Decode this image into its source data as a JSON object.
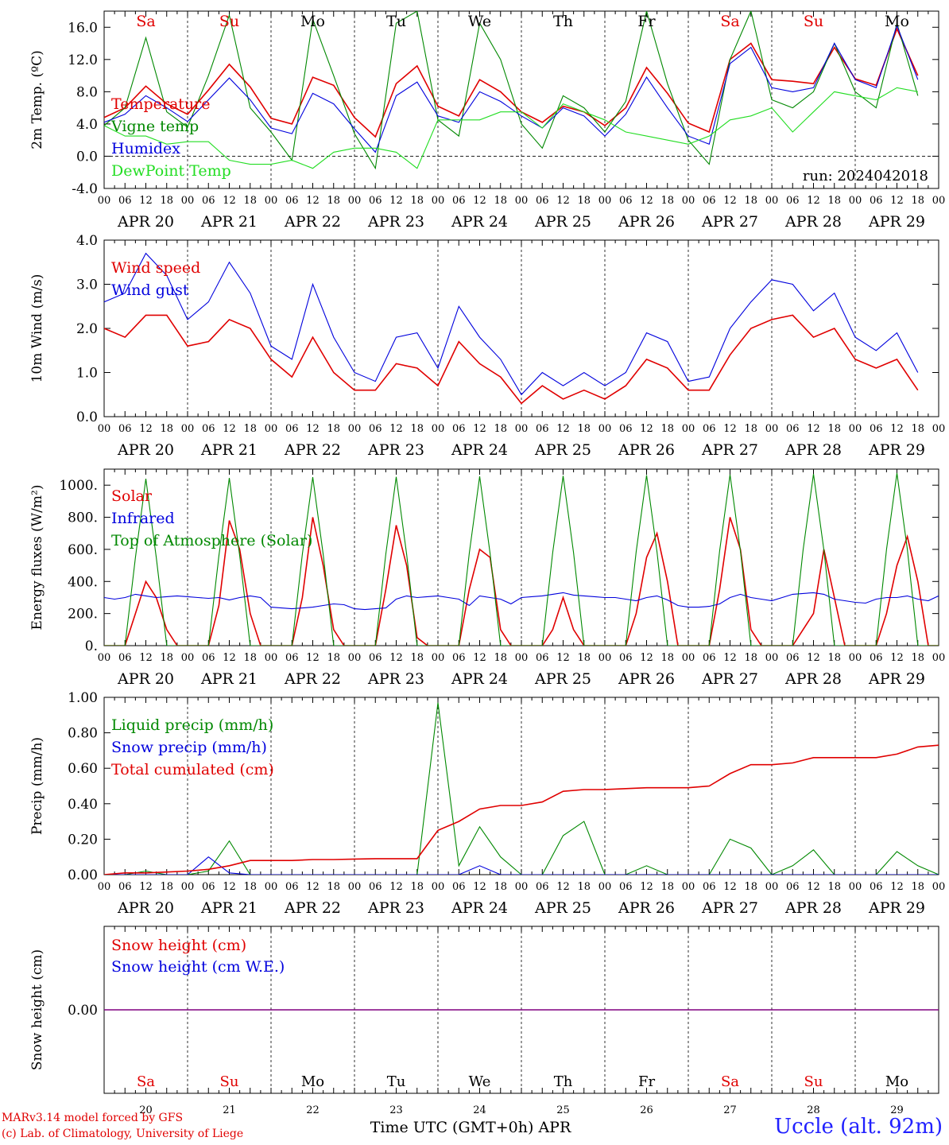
{
  "days": [
    "APR 20",
    "APR 21",
    "APR 22",
    "APR 23",
    "APR 24",
    "APR 25",
    "APR 26",
    "APR 27",
    "APR 28",
    "APR 29"
  ],
  "day_numbers": [
    "20",
    "21",
    "22",
    "23",
    "24",
    "25",
    "26",
    "27",
    "28",
    "29"
  ],
  "weekdays": [
    "Sa",
    "Su",
    "Mo",
    "Tu",
    "We",
    "Th",
    "Fr",
    "Sa",
    "Su",
    "Mo"
  ],
  "weekday_colors": [
    "#e00000",
    "#e00000",
    "#000000",
    "#000000",
    "#000000",
    "#000000",
    "#000000",
    "#e00000",
    "#e00000",
    "#000000"
  ],
  "hour_ticks": [
    "00",
    "06",
    "12",
    "18"
  ],
  "final_tick": "00",
  "colors": {
    "red": "#e00000",
    "blue": "#0000dd",
    "green": "#008800",
    "lightgreen": "#22dd22",
    "purple": "#800080"
  },
  "xlabel": "Time UTC (GMT+0h) APR",
  "credits": [
    "MARv3.14 model forced by GFS",
    "(c) Lab. of Climatology, University of Liege"
  ],
  "station": "Uccle (alt. 92m)",
  "run_label": "run: 2024042018",
  "chart_data": [
    {
      "id": "temp",
      "type": "line",
      "ylabel": "2m Temp. (ºC)",
      "ylim": [
        -4,
        18
      ],
      "yticks": [
        "-4.0",
        "0.0",
        "4.0",
        "8.0",
        "12.0",
        "16.0"
      ],
      "ytick_values": [
        -4,
        0,
        4,
        8,
        12,
        16
      ],
      "zero_line": true,
      "x": [
        0,
        6,
        12,
        18,
        24,
        30,
        36,
        42,
        48,
        54,
        60,
        66,
        72,
        78,
        84,
        90,
        96,
        102,
        108,
        114,
        120,
        126,
        132,
        138,
        144,
        150,
        156,
        162,
        168,
        174,
        180,
        186,
        192,
        198,
        204,
        210,
        216,
        222,
        228,
        234
      ],
      "series": [
        {
          "name": "Temperature",
          "color": "red",
          "values": [
            4.8,
            6.0,
            8.7,
            6.5,
            5.2,
            8.2,
            11.4,
            8.6,
            4.7,
            4.0,
            9.8,
            8.8,
            4.8,
            2.4,
            9.0,
            11.2,
            6.2,
            5.0,
            9.5,
            8.0,
            5.5,
            4.2,
            6.2,
            5.5,
            3.8,
            6.0,
            11.0,
            7.8,
            4.1,
            3.0,
            12.0,
            14.0,
            9.5,
            9.3,
            9.0,
            13.5,
            9.6,
            8.8,
            15.8,
            10.0
          ]
        },
        {
          "name": "Vigne temp",
          "color": "green",
          "values": [
            3.8,
            6.0,
            14.7,
            5.5,
            3.6,
            10.0,
            17.5,
            6.0,
            3.0,
            -0.5,
            17.0,
            10.0,
            2.8,
            -1.5,
            16.5,
            18.0,
            4.5,
            2.5,
            16.5,
            12.0,
            4.0,
            1.0,
            7.5,
            6.0,
            3.0,
            6.8,
            18.0,
            9.0,
            2.0,
            -1.0,
            12.0,
            18.0,
            7.0,
            6.0,
            8.0,
            14.0,
            8.0,
            6.0,
            16.5,
            7.5
          ]
        },
        {
          "name": "Humidex",
          "color": "blue",
          "values": [
            4.2,
            5.2,
            7.5,
            6.0,
            4.3,
            7.0,
            9.7,
            7.0,
            3.5,
            2.8,
            7.8,
            6.5,
            3.4,
            0.5,
            7.5,
            9.2,
            5.0,
            4.2,
            8.0,
            6.8,
            5.0,
            3.5,
            6.0,
            5.0,
            2.5,
            5.2,
            9.8,
            6.0,
            2.5,
            1.5,
            11.5,
            13.5,
            8.5,
            8.0,
            8.5,
            14.0,
            9.5,
            8.5,
            16.2,
            9.5
          ]
        },
        {
          "name": "DewPoint Temp",
          "color": "lightgreen",
          "values": [
            3.8,
            2.5,
            2.5,
            1.5,
            1.8,
            1.8,
            -0.5,
            -1.0,
            -1.0,
            -0.5,
            -1.5,
            0.5,
            1.0,
            1.0,
            0.5,
            -1.5,
            4.5,
            4.5,
            4.5,
            5.5,
            5.5,
            3.5,
            6.5,
            5.5,
            4.5,
            3.0,
            2.5,
            2.0,
            1.5,
            2.5,
            4.5,
            5.0,
            6.0,
            3.0,
            5.5,
            8.0,
            7.5,
            7.0,
            8.5,
            8.0
          ]
        }
      ]
    },
    {
      "id": "wind",
      "type": "line",
      "ylabel": "10m Wind (m/s)",
      "ylim": [
        0,
        4
      ],
      "yticks": [
        "0.0",
        "1.0",
        "2.0",
        "3.0",
        "4.0"
      ],
      "ytick_values": [
        0,
        1,
        2,
        3,
        4
      ],
      "x": [
        0,
        6,
        12,
        18,
        24,
        30,
        36,
        42,
        48,
        54,
        60,
        66,
        72,
        78,
        84,
        90,
        96,
        102,
        108,
        114,
        120,
        126,
        132,
        138,
        144,
        150,
        156,
        162,
        168,
        174,
        180,
        186,
        192,
        198,
        204,
        210,
        216,
        222,
        228,
        234
      ],
      "series": [
        {
          "name": "Wind speed",
          "color": "red",
          "values": [
            2.0,
            1.8,
            2.3,
            2.3,
            1.6,
            1.7,
            2.2,
            2.0,
            1.3,
            0.9,
            1.8,
            1.0,
            0.6,
            0.6,
            1.2,
            1.1,
            0.7,
            1.7,
            1.2,
            0.9,
            0.3,
            0.7,
            0.4,
            0.6,
            0.4,
            0.7,
            1.3,
            1.1,
            0.6,
            0.6,
            1.4,
            2.0,
            2.2,
            2.3,
            1.8,
            2.0,
            1.3,
            1.1,
            1.3,
            0.6
          ]
        },
        {
          "name": "Wind gust",
          "color": "blue",
          "values": [
            2.6,
            2.8,
            3.7,
            3.2,
            2.2,
            2.6,
            3.5,
            2.8,
            1.6,
            1.3,
            3.0,
            1.8,
            1.0,
            0.8,
            1.8,
            1.9,
            1.1,
            2.5,
            1.8,
            1.3,
            0.5,
            1.0,
            0.7,
            1.0,
            0.7,
            1.0,
            1.9,
            1.7,
            0.8,
            0.9,
            2.0,
            2.6,
            3.1,
            3.0,
            2.4,
            2.8,
            1.8,
            1.5,
            1.9,
            1.0
          ]
        }
      ]
    },
    {
      "id": "energy",
      "type": "line",
      "ylabel": "Energy fluxes (W/m²)",
      "ylim": [
        0,
        1100
      ],
      "yticks": [
        "0.",
        "200.",
        "400.",
        "600.",
        "800.",
        "1000."
      ],
      "ytick_values": [
        0,
        200,
        400,
        600,
        800,
        1000
      ],
      "x": [
        0,
        3,
        6,
        9,
        12,
        15,
        18,
        21,
        24,
        27,
        30,
        33,
        36,
        39,
        42,
        45,
        48,
        51,
        54,
        57,
        60,
        63,
        66,
        69,
        72,
        75,
        78,
        81,
        84,
        87,
        90,
        93,
        96,
        99,
        102,
        105,
        108,
        111,
        114,
        117,
        120,
        123,
        126,
        129,
        132,
        135,
        138,
        141,
        144,
        147,
        150,
        153,
        156,
        159,
        162,
        165,
        168,
        171,
        174,
        177,
        180,
        183,
        186,
        189,
        192,
        195,
        198,
        201,
        204,
        207,
        210,
        213,
        216,
        219,
        222,
        225,
        228,
        231,
        234,
        237,
        240
      ],
      "series": [
        {
          "name": "Solar",
          "color": "red",
          "values": [
            0,
            0,
            0,
            200,
            400,
            300,
            100,
            0,
            0,
            0,
            0,
            250,
            780,
            600,
            200,
            0,
            0,
            0,
            0,
            300,
            800,
            500,
            100,
            0,
            0,
            0,
            0,
            350,
            750,
            500,
            50,
            0,
            0,
            0,
            0,
            350,
            600,
            550,
            100,
            0,
            0,
            0,
            0,
            100,
            300,
            100,
            0,
            0,
            0,
            0,
            0,
            200,
            550,
            700,
            400,
            0,
            0,
            0,
            0,
            350,
            800,
            600,
            100,
            0,
            0,
            0,
            0,
            100,
            200,
            600,
            300,
            0,
            0,
            0,
            0,
            200,
            500,
            680,
            400,
            0,
            0
          ]
        },
        {
          "name": "Infrared",
          "color": "blue",
          "values": [
            300,
            290,
            300,
            320,
            310,
            300,
            305,
            310,
            305,
            300,
            295,
            300,
            285,
            300,
            310,
            300,
            240,
            235,
            230,
            235,
            240,
            250,
            260,
            255,
            230,
            225,
            230,
            235,
            290,
            310,
            300,
            305,
            310,
            300,
            290,
            250,
            310,
            300,
            290,
            260,
            300,
            305,
            310,
            320,
            330,
            315,
            310,
            305,
            300,
            300,
            290,
            280,
            300,
            310,
            285,
            250,
            240,
            240,
            245,
            260,
            300,
            320,
            300,
            290,
            280,
            300,
            320,
            325,
            330,
            320,
            290,
            280,
            270,
            265,
            290,
            300,
            300,
            310,
            290,
            280,
            310
          ]
        },
        {
          "name": "Top of Atmosphere (Solar)",
          "color": "green",
          "values": [
            0,
            0,
            0,
            550,
            1040,
            550,
            0,
            0,
            0,
            0,
            0,
            560,
            1045,
            560,
            0,
            0,
            0,
            0,
            0,
            570,
            1050,
            570,
            0,
            0,
            0,
            0,
            0,
            570,
            1052,
            570,
            0,
            0,
            0,
            0,
            0,
            575,
            1055,
            575,
            0,
            0,
            0,
            0,
            0,
            580,
            1058,
            580,
            0,
            0,
            0,
            0,
            0,
            585,
            1062,
            585,
            0,
            0,
            0,
            0,
            0,
            590,
            1066,
            590,
            0,
            0,
            0,
            0,
            0,
            595,
            1070,
            595,
            0,
            0,
            0,
            0,
            0,
            600,
            1075,
            600,
            0,
            0,
            0
          ]
        }
      ]
    },
    {
      "id": "precip",
      "type": "line",
      "ylabel": "Precip (mm/h)",
      "ylim": [
        0,
        1
      ],
      "yticks": [
        "0.00",
        "0.20",
        "0.40",
        "0.60",
        "0.80",
        "1.00"
      ],
      "ytick_values": [
        0,
        0.2,
        0.4,
        0.6,
        0.8,
        1.0
      ],
      "x": [
        0,
        6,
        12,
        18,
        24,
        30,
        36,
        42,
        48,
        54,
        60,
        66,
        72,
        78,
        84,
        90,
        96,
        102,
        108,
        114,
        120,
        126,
        132,
        138,
        144,
        150,
        156,
        162,
        168,
        174,
        180,
        186,
        192,
        198,
        204,
        210,
        216,
        222,
        228,
        234,
        240
      ],
      "series": [
        {
          "name": "Liquid precip (mm/h)",
          "color": "green",
          "values": [
            0,
            0,
            0.02,
            0,
            0,
            0.02,
            0.19,
            0,
            0,
            0,
            0,
            0,
            0,
            0,
            0,
            0,
            0.97,
            0.05,
            0.27,
            0.1,
            0,
            0,
            0.22,
            0.3,
            0,
            0,
            0.05,
            0,
            0,
            0,
            0.2,
            0.15,
            0,
            0.05,
            0.14,
            0,
            0,
            0,
            0.13,
            0.05,
            0
          ]
        },
        {
          "name": "Snow precip (mm/h)",
          "color": "blue",
          "values": [
            0,
            0,
            0,
            0,
            0,
            0.1,
            0.01,
            0,
            0,
            0,
            0,
            0,
            0,
            0,
            0,
            0,
            0,
            0,
            0.05,
            0,
            0,
            0,
            0,
            0,
            0,
            0,
            0,
            0,
            0,
            0,
            0,
            0,
            0,
            0,
            0,
            0,
            0,
            0,
            0,
            0,
            0
          ]
        },
        {
          "name": "Total cumulated (cm)",
          "color": "red",
          "values": [
            0,
            0.01,
            0.01,
            0.015,
            0.02,
            0.03,
            0.05,
            0.08,
            0.08,
            0.08,
            0.085,
            0.085,
            0.088,
            0.09,
            0.09,
            0.09,
            0.25,
            0.3,
            0.37,
            0.39,
            0.39,
            0.41,
            0.47,
            0.48,
            0.48,
            0.485,
            0.49,
            0.49,
            0.49,
            0.5,
            0.57,
            0.62,
            0.62,
            0.63,
            0.66,
            0.66,
            0.66,
            0.66,
            0.68,
            0.72,
            0.73
          ]
        }
      ]
    },
    {
      "id": "snow",
      "type": "line",
      "ylabel": "Snow height (cm)",
      "yticks": [
        "0.00"
      ],
      "ytick_values": [
        0
      ],
      "series": [
        {
          "name": "Snow height (cm)",
          "color": "red"
        },
        {
          "name": "Snow height (cm W.E.)",
          "color": "blue"
        }
      ],
      "line_color": "purple"
    }
  ]
}
